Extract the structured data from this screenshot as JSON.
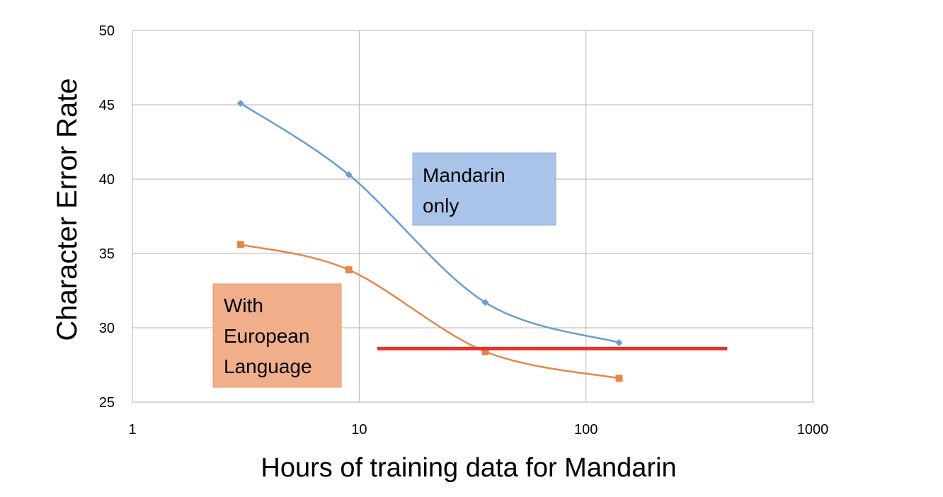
{
  "chart_data": {
    "type": "line",
    "xlabel": "Hours of training data for Mandarin",
    "ylabel": "Character Error Rate",
    "x_scale": "log",
    "xlim": [
      1,
      1000
    ],
    "ylim": [
      25,
      50
    ],
    "x_ticks": [
      "1",
      "10",
      "100",
      "1000"
    ],
    "y_ticks": [
      "25",
      "30",
      "35",
      "40",
      "45",
      "50"
    ],
    "grid": true,
    "series": [
      {
        "name": "Mandarin only",
        "color": "#6a9cd4",
        "marker": "diamond",
        "x": [
          3,
          9,
          36,
          140
        ],
        "y": [
          45.1,
          40.3,
          31.7,
          29.0
        ]
      },
      {
        "name": "With European Language",
        "color": "#e8864a",
        "marker": "square",
        "x": [
          3,
          9,
          36,
          140
        ],
        "y": [
          35.6,
          33.9,
          28.4,
          26.6
        ]
      }
    ],
    "reference_line": {
      "color": "#e8322a",
      "y": 28.6,
      "x_range": [
        12,
        420
      ]
    },
    "annotations": [
      {
        "lines": [
          "Mandarin",
          "only"
        ],
        "fill": "#a9c4e8",
        "stroke": "#8fb0dc"
      },
      {
        "lines": [
          "With",
          "European",
          "Language"
        ],
        "fill": "#f0ae8a",
        "stroke": "#e8956a"
      }
    ]
  }
}
